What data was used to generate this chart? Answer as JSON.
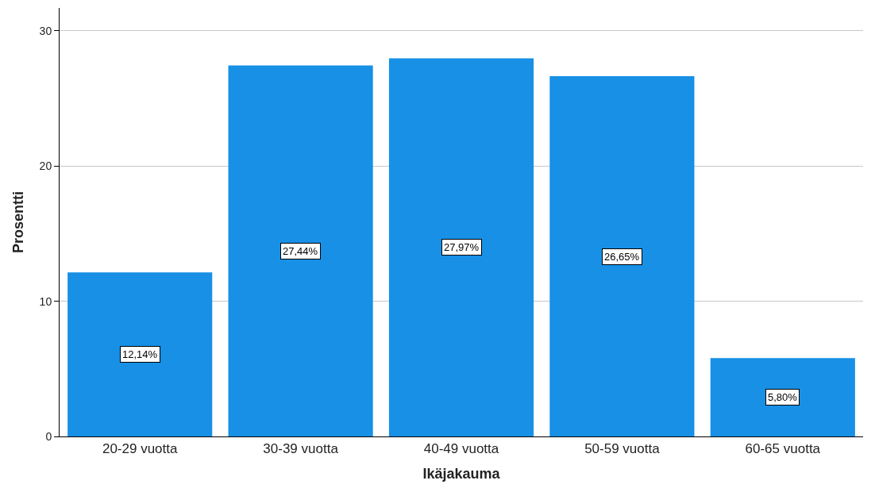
{
  "chart_data": {
    "type": "bar",
    "xlabel": "Ikäjakauma",
    "ylabel": "Prosentti",
    "categories": [
      "20-29 vuotta",
      "30-39 vuotta",
      "40-49 vuotta",
      "50-59 vuotta",
      "60-65 vuotta"
    ],
    "values": [
      12.14,
      27.44,
      27.97,
      26.65,
      5.8
    ],
    "value_labels": [
      "12,14%",
      "27,44%",
      "27,97%",
      "26,65%",
      "5,80%"
    ],
    "color": "#1790e6",
    "ylim": [
      0,
      31.7
    ],
    "yticks": [
      0,
      10,
      20,
      30
    ],
    "grid": "y",
    "legend": false
  }
}
